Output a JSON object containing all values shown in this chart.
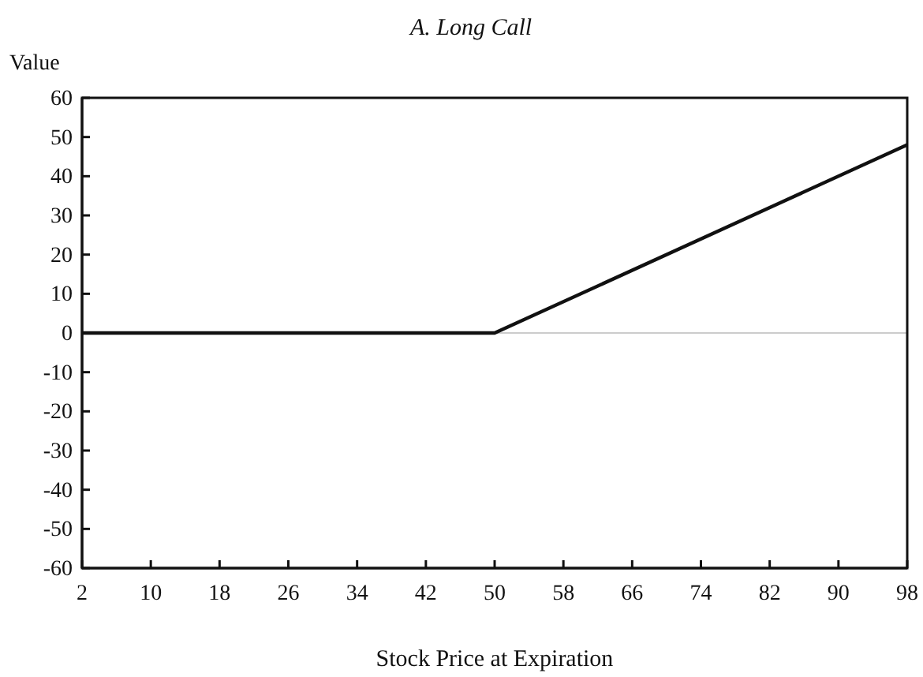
{
  "chart_data": {
    "type": "line",
    "title": "A. Long Call",
    "xlabel": "Stock Price at Expiration",
    "ylabel": "Value",
    "series": [
      {
        "color": "#111111",
        "x": [
          2,
          50,
          98
        ],
        "values": [
          0,
          0,
          48
        ]
      }
    ],
    "xlim": [
      2,
      98
    ],
    "xticks": [
      2,
      10,
      18,
      26,
      34,
      42,
      50,
      58,
      66,
      74,
      82,
      90,
      98
    ],
    "ylim": [
      -60,
      60
    ],
    "yticks": [
      -60,
      -50,
      -40,
      -30,
      -20,
      -10,
      0,
      10,
      20,
      30,
      40,
      50,
      60
    ],
    "ref_lines": [
      {
        "axis": "y",
        "value": 0,
        "color": "#cccccc"
      }
    ],
    "grid": false,
    "marker": "none",
    "line_style": "solid"
  }
}
